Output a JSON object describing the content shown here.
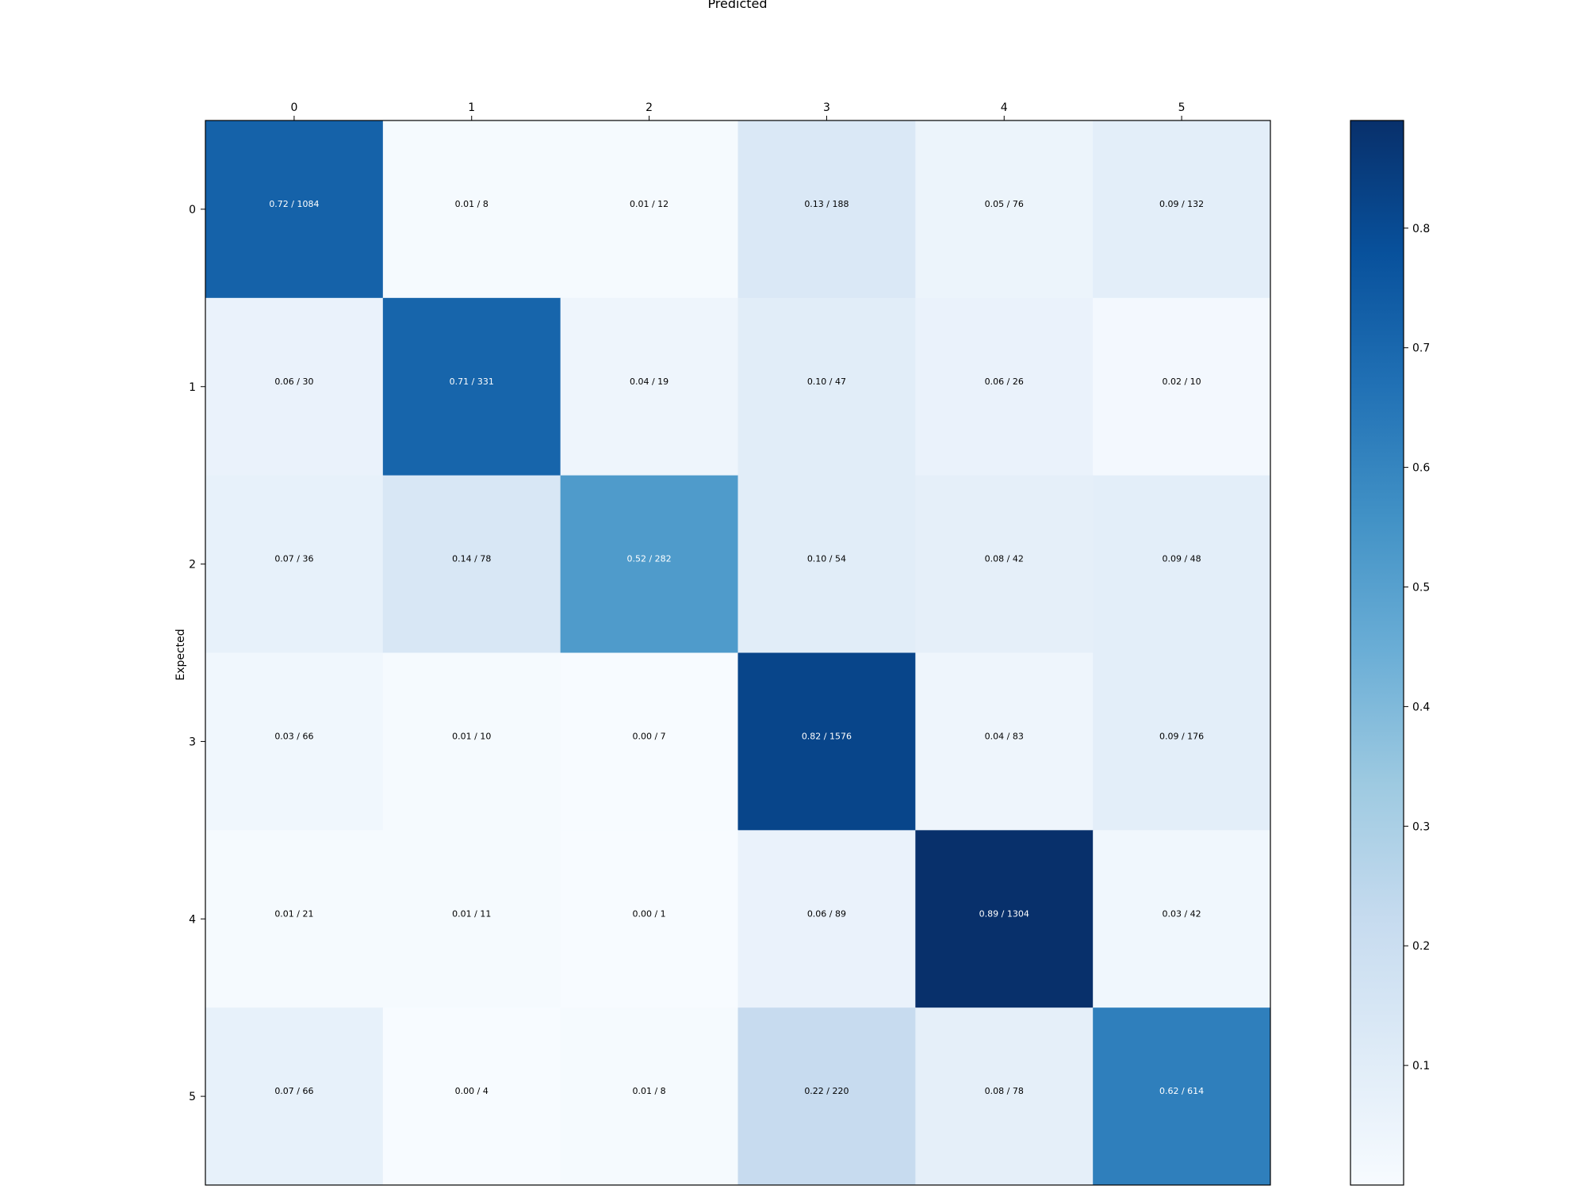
{
  "chart_data": {
    "type": "heatmap",
    "xlabel": "Predicted",
    "ylabel": "Expected",
    "x_categories": [
      "0",
      "1",
      "2",
      "3",
      "4",
      "5"
    ],
    "y_categories": [
      "0",
      "1",
      "2",
      "3",
      "4",
      "5"
    ],
    "cells": [
      [
        {
          "ratio": 0.72,
          "count": 1084
        },
        {
          "ratio": 0.01,
          "count": 8
        },
        {
          "ratio": 0.01,
          "count": 12
        },
        {
          "ratio": 0.13,
          "count": 188
        },
        {
          "ratio": 0.05,
          "count": 76
        },
        {
          "ratio": 0.09,
          "count": 132
        }
      ],
      [
        {
          "ratio": 0.06,
          "count": 30
        },
        {
          "ratio": 0.71,
          "count": 331
        },
        {
          "ratio": 0.04,
          "count": 19
        },
        {
          "ratio": 0.1,
          "count": 47
        },
        {
          "ratio": 0.06,
          "count": 26
        },
        {
          "ratio": 0.02,
          "count": 10
        }
      ],
      [
        {
          "ratio": 0.07,
          "count": 36
        },
        {
          "ratio": 0.14,
          "count": 78
        },
        {
          "ratio": 0.52,
          "count": 282
        },
        {
          "ratio": 0.1,
          "count": 54
        },
        {
          "ratio": 0.08,
          "count": 42
        },
        {
          "ratio": 0.09,
          "count": 48
        }
      ],
      [
        {
          "ratio": 0.03,
          "count": 66
        },
        {
          "ratio": 0.01,
          "count": 10
        },
        {
          "ratio": 0.0,
          "count": 7
        },
        {
          "ratio": 0.82,
          "count": 1576
        },
        {
          "ratio": 0.04,
          "count": 83
        },
        {
          "ratio": 0.09,
          "count": 176
        }
      ],
      [
        {
          "ratio": 0.01,
          "count": 21
        },
        {
          "ratio": 0.01,
          "count": 11
        },
        {
          "ratio": 0.0,
          "count": 1
        },
        {
          "ratio": 0.06,
          "count": 89
        },
        {
          "ratio": 0.89,
          "count": 1304
        },
        {
          "ratio": 0.03,
          "count": 42
        }
      ],
      [
        {
          "ratio": 0.07,
          "count": 66
        },
        {
          "ratio": 0.0,
          "count": 4
        },
        {
          "ratio": 0.01,
          "count": 8
        },
        {
          "ratio": 0.22,
          "count": 220
        },
        {
          "ratio": 0.08,
          "count": 78
        },
        {
          "ratio": 0.62,
          "count": 614
        }
      ]
    ],
    "colorbar": {
      "colormap": "Blues",
      "range": [
        0.0,
        0.89
      ],
      "ticks": [
        "0.1",
        "0.2",
        "0.3",
        "0.4",
        "0.5",
        "0.6",
        "0.7",
        "0.8"
      ]
    },
    "x_axis_position": "top",
    "grid": false
  }
}
